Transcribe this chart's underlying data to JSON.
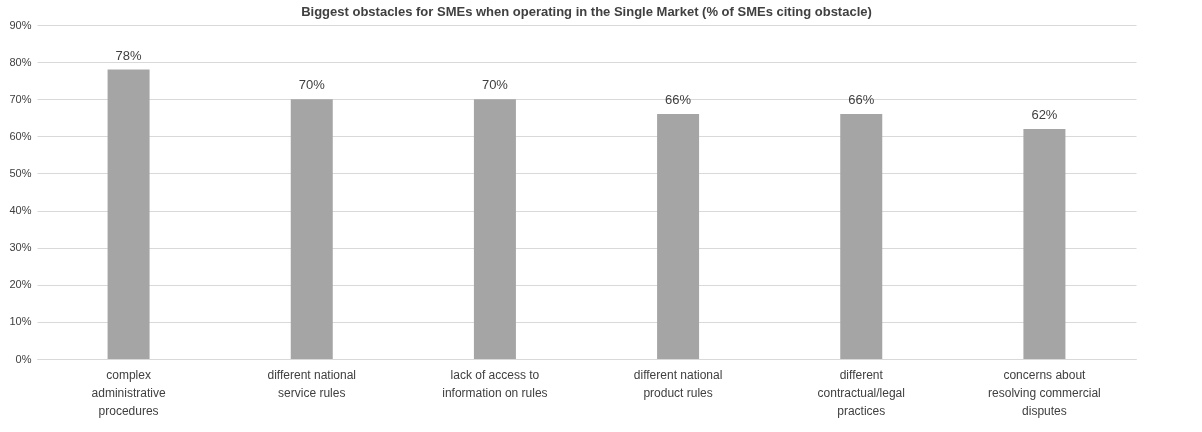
{
  "chart_data": {
    "type": "bar",
    "title": "Biggest obstacles for SMEs when operating  in  the Single Market (% of SMEs citing obstacle)",
    "categories": [
      "complex administrative procedures",
      "different national service rules",
      "lack of access to information on rules",
      "different national product rules",
      "different contractual/legal practices",
      "concerns about resolving commercial disputes"
    ],
    "values": [
      78,
      70,
      70,
      66,
      66,
      62
    ],
    "value_labels": [
      "78%",
      "70%",
      "70%",
      "66%",
      "66%",
      "62%"
    ],
    "color": "#a5a5a5",
    "ylim": [
      0,
      90
    ],
    "yticks": [
      {
        "value": 0,
        "label": "0%"
      },
      {
        "value": 10,
        "label": "10%"
      },
      {
        "value": 20,
        "label": "20%"
      },
      {
        "value": 30,
        "label": "30%"
      },
      {
        "value": 40,
        "label": "40%"
      },
      {
        "value": 50,
        "label": "50%"
      },
      {
        "value": 60,
        "label": "60%"
      },
      {
        "value": 70,
        "label": "70%"
      },
      {
        "value": 80,
        "label": "80%"
      },
      {
        "value": 90,
        "label": "90%"
      }
    ],
    "grid": "y"
  }
}
